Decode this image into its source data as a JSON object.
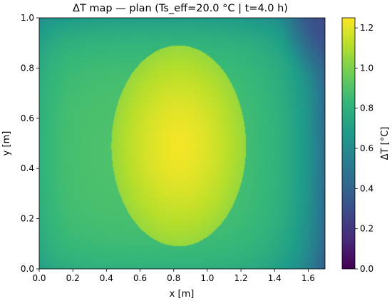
{
  "chart_data": {
    "type": "heatmap",
    "title": "ΔT map — plan  (Ts_eff=20.0 °C | t=4.0 h)",
    "xlabel": "x [m]",
    "ylabel": "y [m]",
    "xlim": [
      0.0,
      1.7
    ],
    "ylim": [
      0.0,
      1.0
    ],
    "x_ticks": [
      "0.0",
      "0.2",
      "0.4",
      "0.6",
      "0.8",
      "1.0",
      "1.2",
      "1.4",
      "1.6"
    ],
    "y_ticks": [
      "0.0",
      "0.2",
      "0.4",
      "0.6",
      "0.8",
      "1.0"
    ],
    "colormap": "viridis",
    "colorbar": {
      "label": "ΔT [°C]",
      "range": [
        0.0,
        1.25
      ],
      "ticks": [
        "0.0",
        "0.2",
        "0.4",
        "0.6",
        "0.8",
        "1.0",
        "1.2"
      ]
    },
    "field": {
      "hotspot_center": [
        0.83,
        0.49
      ],
      "hotspot_radius_m": 0.4,
      "hotspot_peak": 1.23,
      "hotspot_edge": 1.05,
      "background_near_hotspot": 0.9,
      "edge_values": {
        "left": 0.8,
        "bottom": 0.8,
        "top": 0.7,
        "right": 0.45
      },
      "corner_min": {
        "location": [
          1.7,
          1.0
        ],
        "value": 0.3
      }
    }
  }
}
